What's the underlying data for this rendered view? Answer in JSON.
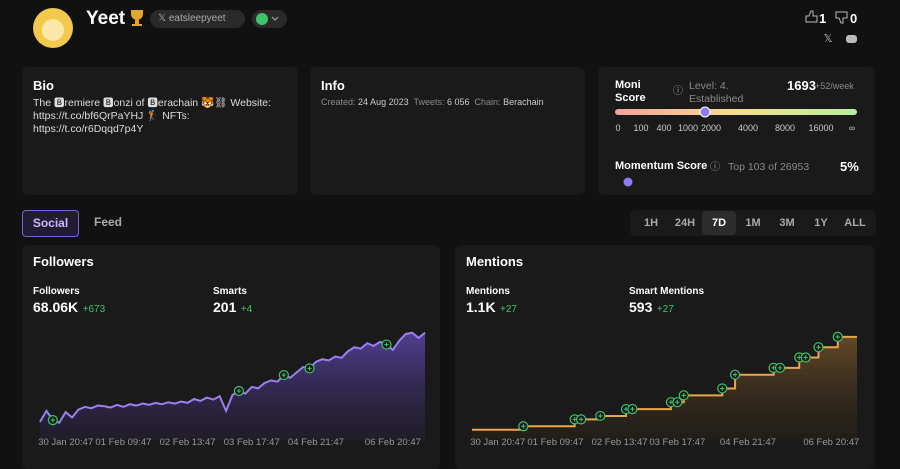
{
  "profile": {
    "name": "Yeet",
    "handle": "𝕏 eatsleepyeet",
    "likes": "1",
    "dislikes": "0"
  },
  "bio": {
    "title": "Bio",
    "text": "The 🅱remiere 🅱onzi of 🅱erachain 🐯⛓ Website: https://t.co/bf6QrPaYHJ 🏌 NFTs: https://t.co/r6Dqqd7p4Y"
  },
  "info": {
    "title": "Info",
    "items": [
      [
        "Created:",
        "24 Aug 2023"
      ],
      [
        "Tweets:",
        "6 056"
      ],
      [
        "Chain:",
        "Berachain"
      ]
    ]
  },
  "moni": {
    "label": "Moni Score",
    "level": "Level: 4. Established",
    "score": "1693",
    "rate": "+52/week",
    "scale": [
      "0",
      "100",
      "400",
      "1000",
      "2000",
      "4000",
      "8000",
      "16000",
      "∞"
    ]
  },
  "momentum": {
    "label": "Momentum Score",
    "rank": "Top 103 of 26953",
    "value": "5%"
  },
  "tabs": [
    "Social",
    "Feed"
  ],
  "active_tab": "Social",
  "ranges": [
    "1H",
    "24H",
    "7D",
    "1M",
    "3M",
    "1Y",
    "ALL"
  ],
  "active_range": "7D",
  "chart_data": [
    {
      "type": "area",
      "title": "Followers",
      "color": "#9b80f2",
      "stats": [
        {
          "label": "Followers",
          "value": "68.06K",
          "change": "+673"
        },
        {
          "label": "Smarts",
          "value": "201",
          "change": "+4"
        }
      ],
      "categories": [
        null,
        null,
        null,
        null,
        "30 Jan 20:47",
        null,
        null,
        null,
        null,
        null,
        null,
        null,
        null,
        "01 Feb 09:47",
        null,
        null,
        null,
        null,
        null,
        null,
        null,
        null,
        null,
        "02 Feb 13:47",
        null,
        null,
        null,
        null,
        null,
        null,
        null,
        null,
        null,
        "03 Feb 17:47",
        null,
        null,
        null,
        null,
        null,
        null,
        null,
        null,
        null,
        "04 Feb 21:47",
        null,
        null,
        null,
        null,
        null,
        null,
        null,
        null,
        null,
        null,
        null,
        "06 Feb 20:47",
        null,
        null,
        null,
        null,
        null
      ],
      "values": [
        67387,
        67470,
        67400,
        67380,
        67460,
        67420,
        67480,
        67500,
        67490,
        67510,
        67505,
        67495,
        67515,
        67500,
        67520,
        67510,
        67525,
        67515,
        67530,
        67520,
        67535,
        67525,
        67540,
        67530,
        67560,
        67545,
        67570,
        67555,
        67580,
        67470,
        67590,
        67620,
        67600,
        67650,
        67640,
        67680,
        67700,
        67690,
        67740,
        67720,
        67760,
        67800,
        67790,
        67840,
        67860,
        67850,
        67880,
        67870,
        67920,
        67950,
        67940,
        67980,
        67960,
        67990,
        67970,
        67930,
        68000,
        68050,
        68060,
        68020,
        68060
      ],
      "events": [
        2,
        31,
        38,
        42,
        54
      ],
      "ylim": [
        67250,
        68080
      ]
    },
    {
      "type": "step",
      "title": "Mentions",
      "color": "#e9a54c",
      "stats": [
        {
          "label": "Mentions",
          "value": "1.1K",
          "change": "+27"
        },
        {
          "label": "Smart Mentions",
          "value": "593",
          "change": "+27"
        }
      ],
      "categories": [
        null,
        null,
        null,
        null,
        "30 Jan 20:47",
        null,
        null,
        null,
        null,
        null,
        null,
        null,
        null,
        "01 Feb 09:47",
        null,
        null,
        null,
        null,
        null,
        null,
        null,
        null,
        null,
        "02 Feb 13:47",
        null,
        null,
        null,
        null,
        null,
        null,
        null,
        null,
        "03 Feb 17:47",
        null,
        null,
        null,
        null,
        null,
        null,
        null,
        null,
        null,
        null,
        "04 Feb 21:47",
        null,
        null,
        null,
        null,
        null,
        null,
        null,
        null,
        null,
        null,
        null,
        null,
        "06 Feb 20:47",
        null,
        null,
        null,
        null
      ],
      "values": [
        1073,
        1073,
        1073,
        1073,
        1073,
        1073,
        1073,
        1073,
        1074,
        1074,
        1074,
        1074,
        1074,
        1074,
        1074,
        1074,
        1076,
        1076,
        1076,
        1076,
        1077,
        1077,
        1077,
        1077,
        1079,
        1079,
        1079,
        1079,
        1079,
        1079,
        1079,
        1081,
        1081,
        1083,
        1083,
        1083,
        1083,
        1083,
        1083,
        1085,
        1085,
        1089,
        1089,
        1089,
        1089,
        1089,
        1089,
        1091,
        1091,
        1091,
        1091,
        1094,
        1094,
        1094,
        1097,
        1097,
        1097,
        1100,
        1100,
        1100,
        1100
      ],
      "events": [
        8,
        16,
        17,
        20,
        24,
        25,
        31,
        32,
        33,
        39,
        41,
        47,
        48,
        51,
        52,
        54,
        57
      ],
      "ylim": [
        1070,
        1102
      ]
    }
  ]
}
